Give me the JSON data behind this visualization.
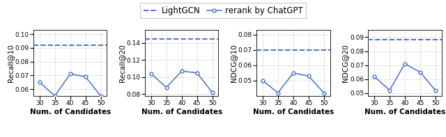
{
  "x": [
    30,
    35,
    40,
    45,
    50
  ],
  "subplots": [
    {
      "ylabel": "Recall@10",
      "lightgcn_val": 0.092,
      "rerank_vals": [
        0.065,
        0.055,
        0.071,
        0.069,
        0.055
      ],
      "ylim": [
        0.055,
        0.103
      ],
      "yticks": [
        0.06,
        0.07,
        0.08,
        0.09,
        0.1
      ]
    },
    {
      "ylabel": "Recall@20",
      "lightgcn_val": 0.145,
      "rerank_vals": [
        0.104,
        0.088,
        0.107,
        0.105,
        0.082
      ],
      "ylim": [
        0.078,
        0.155
      ],
      "yticks": [
        0.08,
        0.1,
        0.12,
        0.14
      ]
    },
    {
      "ylabel": "NDCG@10",
      "lightgcn_val": 0.07,
      "rerank_vals": [
        0.05,
        0.042,
        0.055,
        0.053,
        0.042
      ],
      "ylim": [
        0.04,
        0.083
      ],
      "yticks": [
        0.05,
        0.06,
        0.07,
        0.08
      ]
    },
    {
      "ylabel": "NDCG@20",
      "lightgcn_val": 0.088,
      "rerank_vals": [
        0.062,
        0.052,
        0.071,
        0.065,
        0.052
      ],
      "ylim": [
        0.048,
        0.095
      ],
      "yticks": [
        0.05,
        0.06,
        0.07,
        0.08,
        0.09
      ]
    }
  ],
  "line_color": "#4472C4",
  "dashed_color": "#4472C4",
  "xlabel": "Num. of Candidates",
  "legend_labels": [
    "LightGCN",
    "rerank by ChatGPT"
  ],
  "xticks": [
    30,
    35,
    40,
    45,
    50
  ],
  "marker": "o",
  "marker_size": 3.5,
  "tick_fontsize": 6.5,
  "label_fontsize": 7.5,
  "legend_fontsize": 8.5
}
